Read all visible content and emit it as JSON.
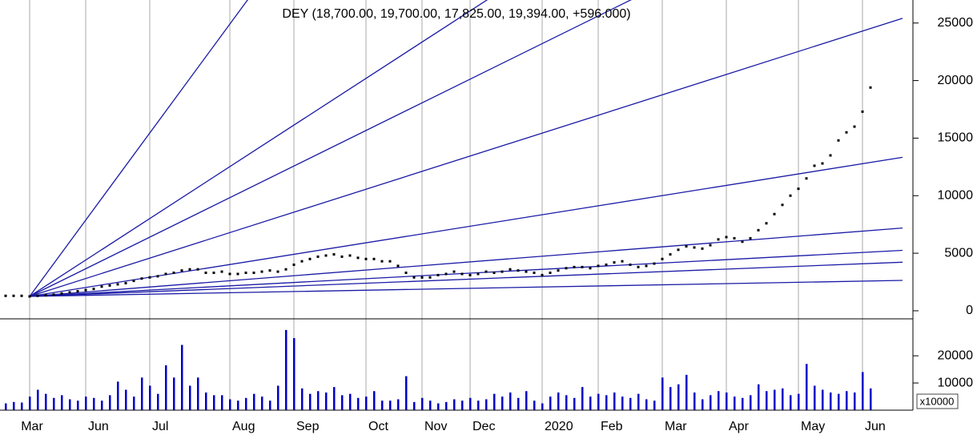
{
  "chart_data": [
    {
      "type": "dot",
      "title": "DEY (18,700.00, 19,700.00, 17,825.00, 19,394.00, +596.000)",
      "categories": [
        null,
        null,
        null,
        null,
        "Mar",
        null,
        null,
        null,
        null,
        null,
        null,
        "Jun",
        null,
        null,
        null,
        null,
        null,
        null,
        null,
        "Jul",
        null,
        null,
        null,
        null,
        null,
        null,
        null,
        null,
        null,
        "Aug",
        null,
        null,
        null,
        null,
        null,
        null,
        null,
        "Sep",
        null,
        null,
        null,
        null,
        null,
        null,
        null,
        null,
        "Oct",
        null,
        null,
        null,
        null,
        null,
        null,
        "Nov",
        null,
        null,
        null,
        null,
        null,
        "Dec",
        null,
        null,
        null,
        null,
        null,
        null,
        null,
        null,
        "2020",
        null,
        null,
        null,
        null,
        null,
        null,
        "Feb",
        null,
        null,
        null,
        null,
        null,
        null,
        null,
        "Mar",
        null,
        null,
        null,
        null,
        null,
        null,
        null,
        "Apr",
        null,
        null,
        null,
        null,
        null,
        null,
        null,
        null,
        "May",
        null,
        null,
        null,
        null,
        null,
        null,
        null,
        "Jun",
        null,
        null,
        null,
        null,
        null
      ],
      "values": [
        1300,
        1300,
        1300,
        1300,
        1250,
        1300,
        1350,
        1400,
        1500,
        1600,
        1700,
        1800,
        1900,
        2100,
        2200,
        2300,
        2400,
        2600,
        2800,
        2900,
        3000,
        3200,
        3300,
        3500,
        3600,
        3600,
        3300,
        3300,
        3400,
        3200,
        3200,
        3300,
        3300,
        3400,
        3500,
        3400,
        3600,
        4000,
        4300,
        4500,
        4700,
        4800,
        4900,
        4700,
        4800,
        4600,
        4500,
        4500,
        4300,
        4300,
        3900,
        3300,
        2900,
        2900,
        2900,
        3100,
        3200,
        3400,
        3200,
        3100,
        3200,
        3400,
        3300,
        3400,
        3600,
        3500,
        3400,
        3300,
        3100,
        3300,
        3500,
        3700,
        3800,
        3800,
        3700,
        3900,
        4000,
        4200,
        4300,
        4000,
        3800,
        3900,
        4100,
        4500,
        4900,
        5300,
        5600,
        5500,
        5400,
        5700,
        6200,
        6400,
        6300,
        6000,
        6300,
        7000,
        7600,
        8400,
        9200,
        10000,
        10600,
        11500,
        12600,
        12800,
        13500,
        14800,
        15500,
        16000,
        17300,
        19394,
        null,
        null,
        null,
        null
      ],
      "color": "#000000",
      "gann_fan": {
        "origin": 1250,
        "ends": [
          104400,
          50400,
          38650,
          25410,
          13330,
          7190,
          5250,
          4220,
          2640
        ],
        "color": "#1a1aa6"
      },
      "ylim": [
        -700,
        27000
      ],
      "yticks": [
        0,
        5000,
        10000,
        15000,
        20000,
        25000
      ]
    },
    {
      "type": "bar",
      "label": "x10000",
      "color": "#0000c8",
      "values": [
        3000,
        2500,
        3000,
        2800,
        5000,
        7500,
        6000,
        4500,
        5500,
        4000,
        3500,
        5000,
        4500,
        3500,
        5500,
        10500,
        7500,
        5000,
        12000,
        9000,
        6000,
        16500,
        12000,
        24000,
        9000,
        12000,
        6500,
        5500,
        5500,
        4000,
        3500,
        4500,
        6000,
        5000,
        3500,
        9000,
        29500,
        26500,
        8000,
        6000,
        7000,
        6500,
        8500,
        5500,
        6000,
        4500,
        5000,
        7000,
        3500,
        3500,
        4000,
        12500,
        3000,
        4500,
        3500,
        2500,
        3000,
        4000,
        3500,
        4500,
        3500,
        4000,
        6000,
        5000,
        6500,
        4500,
        7000,
        3500,
        2500,
        5000,
        6500,
        5500,
        4500,
        8500,
        5000,
        6000,
        5500,
        6500,
        5000,
        4500,
        6000,
        4000,
        3500,
        12000,
        8500,
        9500,
        13000,
        6500,
        4000,
        5500,
        7000,
        6500,
        5000,
        4500,
        5500,
        9500,
        7000,
        7500,
        8000,
        5500,
        6000,
        17000,
        9000,
        7500,
        6500,
        6000,
        7000,
        6500,
        14000,
        8000,
        null,
        null,
        null,
        null
      ],
      "ylim": [
        0,
        33000
      ],
      "yticks": [
        10000,
        20000
      ]
    }
  ]
}
